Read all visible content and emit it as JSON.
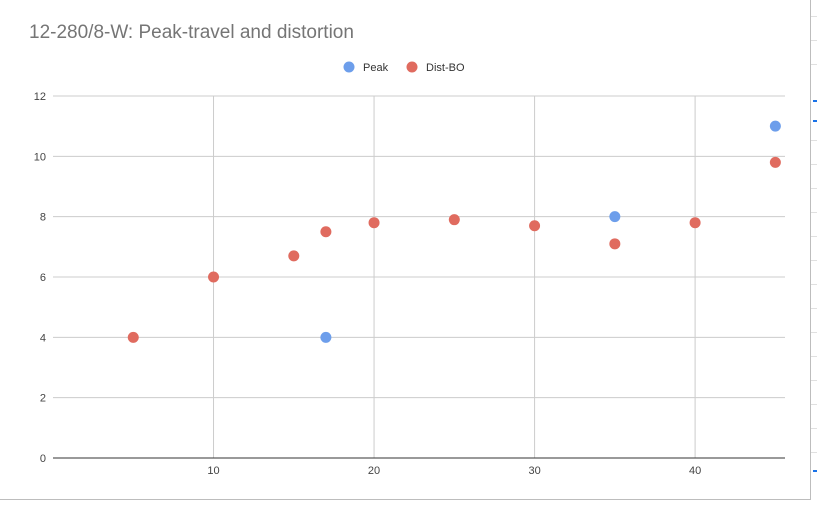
{
  "chart_data": {
    "type": "scatter",
    "title": "12-280/8-W: Peak-travel and distortion",
    "xlabel": "",
    "ylabel": "",
    "xlim": [
      0,
      45.6
    ],
    "ylim": [
      0,
      12
    ],
    "xticks": [
      10,
      20,
      30,
      40
    ],
    "yticks": [
      0,
      2,
      4,
      6,
      8,
      10,
      12
    ],
    "grid": true,
    "legend_position": "top",
    "series": [
      {
        "name": "Peak",
        "color": "#6d9eeb",
        "points": [
          {
            "x": 17,
            "y": 4
          },
          {
            "x": 35,
            "y": 8
          },
          {
            "x": 45,
            "y": 11
          }
        ]
      },
      {
        "name": "Dist-BO",
        "color": "#e06b5f",
        "points": [
          {
            "x": 5,
            "y": 4
          },
          {
            "x": 10,
            "y": 6
          },
          {
            "x": 15,
            "y": 6.7
          },
          {
            "x": 17,
            "y": 7.5
          },
          {
            "x": 20,
            "y": 7.8
          },
          {
            "x": 25,
            "y": 7.9
          },
          {
            "x": 30,
            "y": 7.7
          },
          {
            "x": 35,
            "y": 7.1
          },
          {
            "x": 40,
            "y": 7.8
          },
          {
            "x": 45,
            "y": 9.8
          }
        ]
      }
    ]
  }
}
